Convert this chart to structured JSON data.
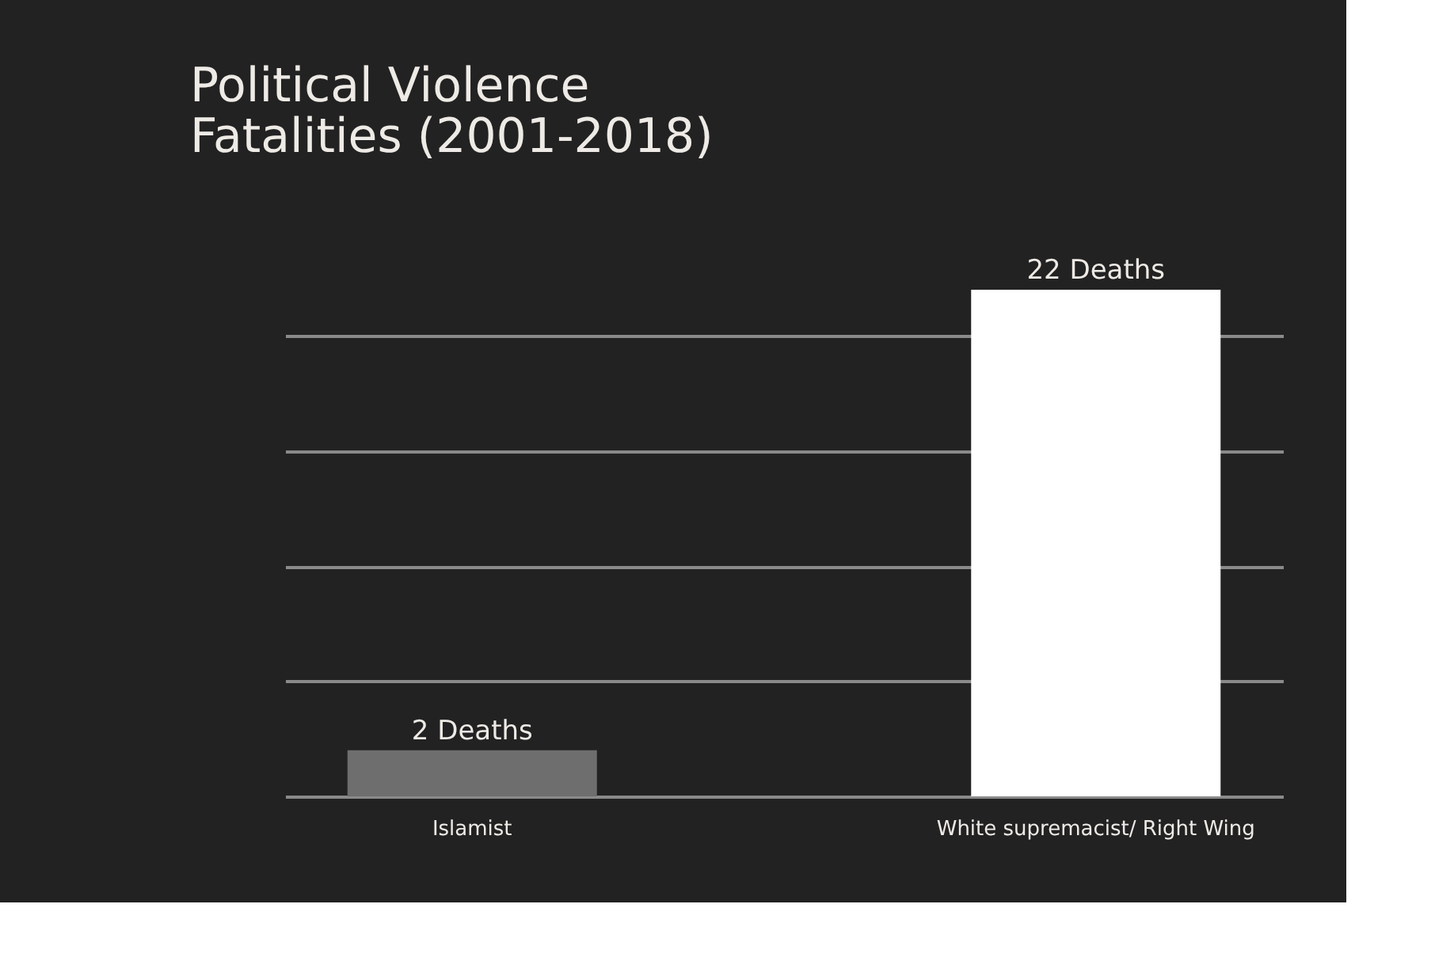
{
  "chart_data": {
    "type": "bar",
    "title": "Political Violence Fatalities (2001-2018)",
    "categories": [
      "Islamist",
      "White supremacist/ Right Wing"
    ],
    "values": [
      2,
      22
    ],
    "colors": [
      "#6e6e6e",
      "#ffffff"
    ],
    "value_labels": [
      "2 Deaths",
      "22 Deaths"
    ],
    "grid": "y",
    "tick_labels": "x"
  }
}
